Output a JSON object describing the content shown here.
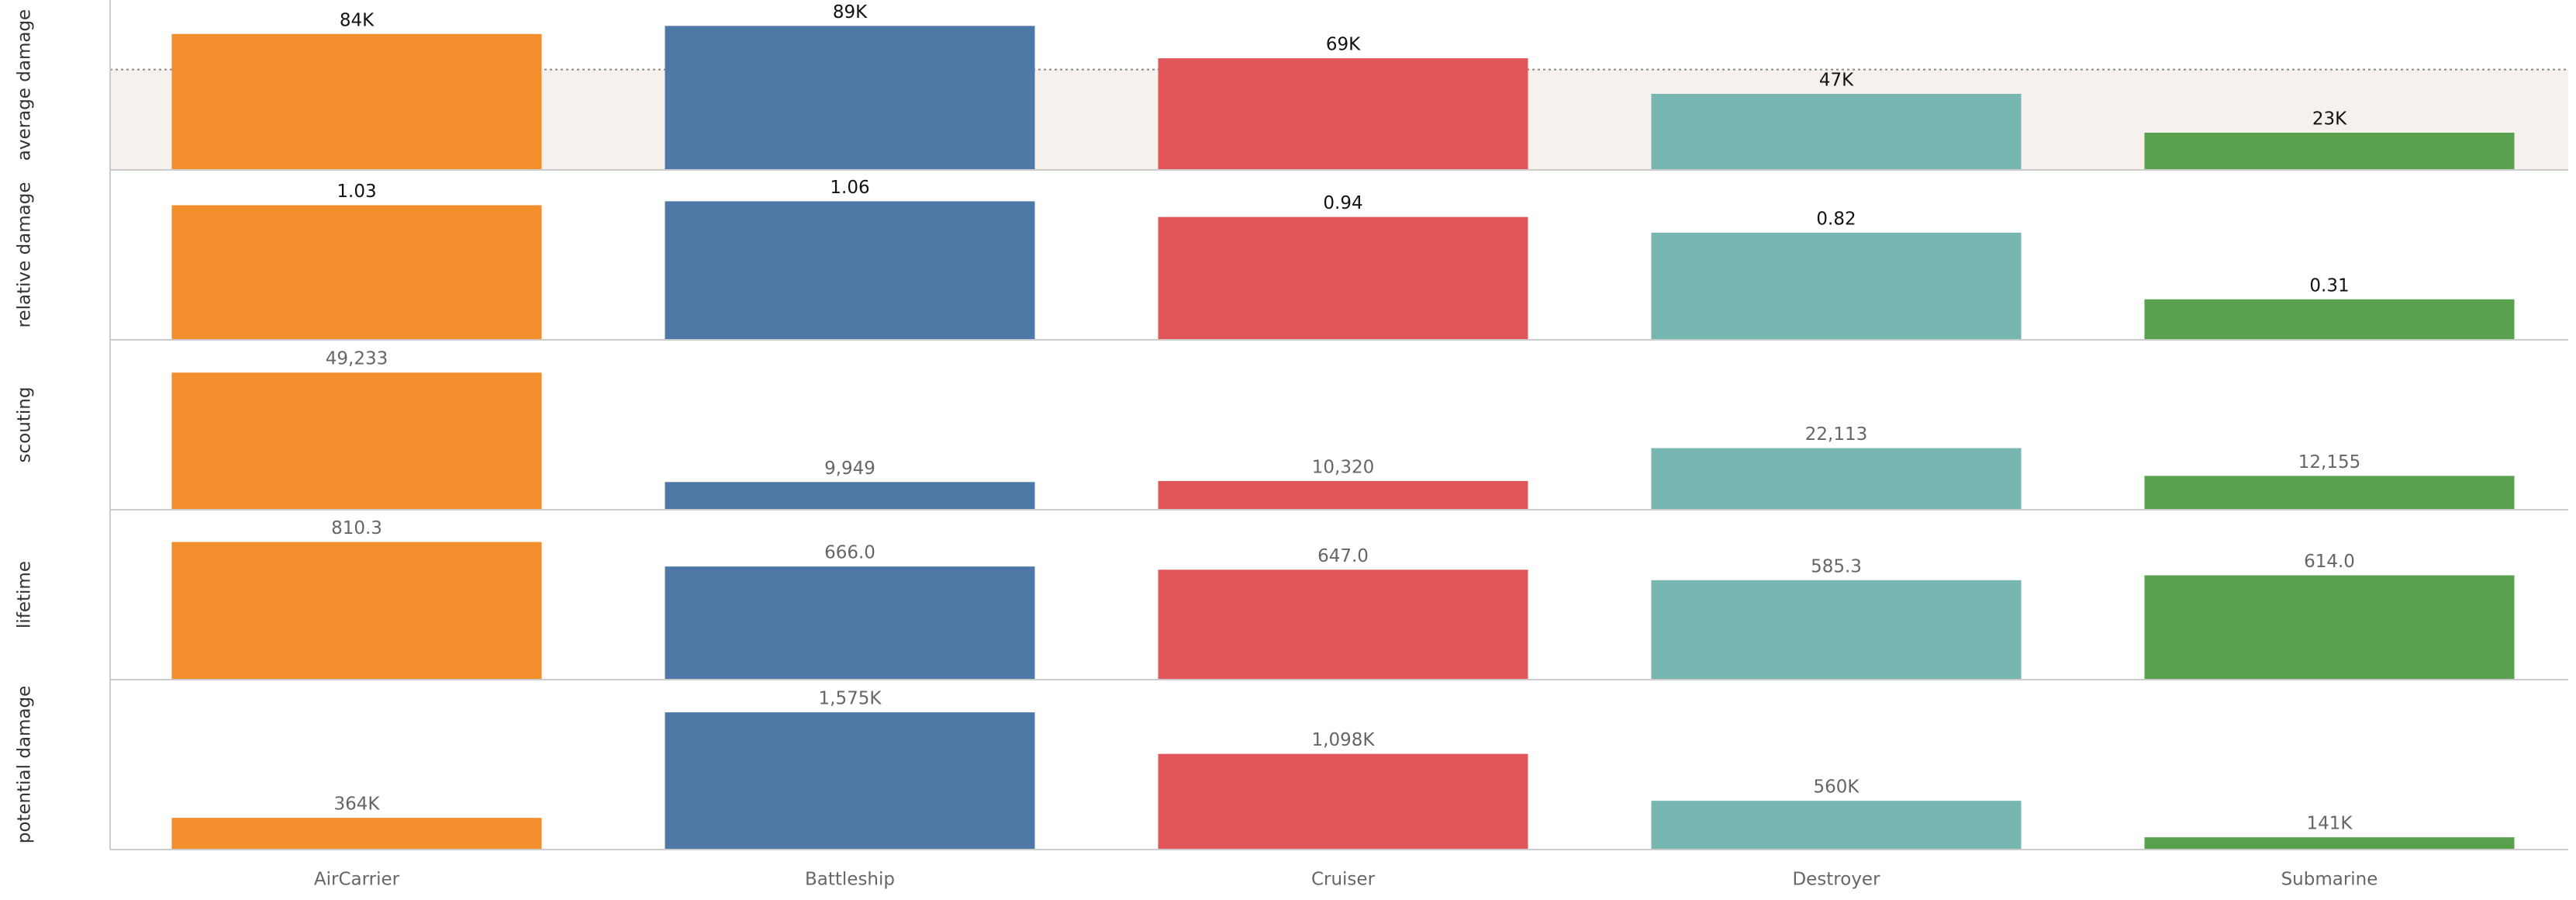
{
  "chart_data": {
    "type": "bar",
    "categories": [
      "AirCarrier",
      "Battleship",
      "Cruiser",
      "Destroyer",
      "Submarine"
    ],
    "colors": [
      "#f28e2b",
      "#4e79a7",
      "#e15759",
      "#76b7b2",
      "#59a14f"
    ],
    "panels": [
      {
        "name": "average damage",
        "values": [
          84000,
          89000,
          69000,
          47000,
          23000
        ],
        "value_labels": [
          "84K",
          "89K",
          "69K",
          "47K",
          "23K"
        ],
        "ylim": [
          0,
          105000
        ],
        "reference_line": 62000
      },
      {
        "name": "relative damage",
        "values": [
          1.03,
          1.06,
          0.94,
          0.82,
          0.31
        ],
        "ylim": [
          0,
          1.3
        ]
      },
      {
        "name": "scouting",
        "values": [
          49233,
          9949,
          10320,
          22113,
          12155
        ],
        "value_labels": [
          "49,233",
          "9,949",
          "10,320",
          "22,113",
          "12,155"
        ],
        "ylim": [
          0,
          61000
        ]
      },
      {
        "name": "lifetime",
        "values": [
          810.3,
          666,
          647,
          585.3,
          614
        ],
        "value_labels": [
          "810.3",
          "666.0",
          "647.0",
          "585.3",
          "614.0"
        ],
        "ylim": [
          0,
          1000
        ]
      },
      {
        "name": "potential damage",
        "values": [
          364000,
          1575000,
          1098000,
          560000,
          141000
        ],
        "value_labels": [
          "364K",
          "1,575K",
          "1,098K",
          "560K",
          "141K"
        ],
        "ylim": [
          0,
          1950000
        ]
      }
    ]
  }
}
